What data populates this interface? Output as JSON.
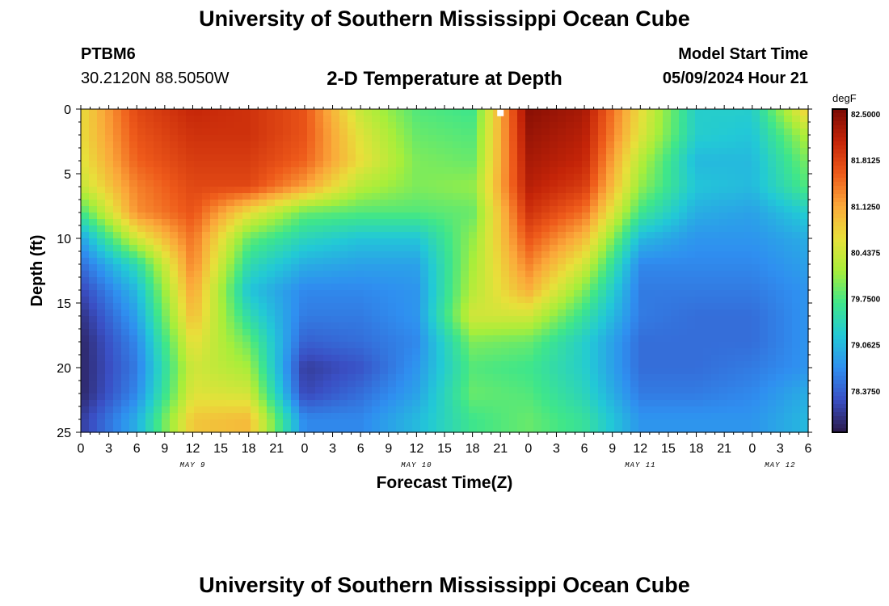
{
  "header": {
    "title": "University of Southern Mississippi Ocean Cube",
    "station": "PTBM6",
    "location": "30.2120N  88.5050W",
    "plot_title": "2-D Temperature at Depth",
    "model_label": "Model Start Time",
    "model_time": "05/09/2024 Hour 21"
  },
  "footer": {
    "title": "University of Southern Mississippi Ocean Cube"
  },
  "chart_data": {
    "type": "heatmap",
    "title": "2-D Temperature at Depth",
    "xlabel": "Forecast Time(Z)",
    "ylabel": "Depth (ft)",
    "ylim": [
      0,
      25
    ],
    "y_inverted": true,
    "y_ticks": [
      "0",
      "5",
      "10",
      "15",
      "20",
      "25"
    ],
    "x_range_hours": [
      0,
      78
    ],
    "x_tick_labels": [
      "0",
      "3",
      "6",
      "9",
      "12",
      "15",
      "18",
      "21",
      "0",
      "3",
      "6",
      "9",
      "12",
      "15",
      "18",
      "21",
      "0",
      "3",
      "6",
      "9",
      "12",
      "15",
      "18",
      "21",
      "0",
      "3",
      "6"
    ],
    "x_tick_hours": [
      0,
      3,
      6,
      9,
      12,
      15,
      18,
      21,
      24,
      27,
      30,
      33,
      36,
      39,
      42,
      45,
      48,
      51,
      54,
      57,
      60,
      63,
      66,
      69,
      72,
      75,
      78
    ],
    "day_labels": [
      {
        "text": "MAY 9",
        "hour": 12
      },
      {
        "text": "MAY 10",
        "hour": 36
      },
      {
        "text": "MAY 11",
        "hour": 60
      },
      {
        "text": "MAY 12",
        "hour": 75
      }
    ],
    "colorbar": {
      "unit": "degF",
      "min": 77.6875,
      "max": 82.5,
      "tick_labels": [
        "82.5000",
        "81.8125",
        "81.1250",
        "80.4375",
        "79.7500",
        "79.0625",
        "78.3750"
      ],
      "tick_values": [
        82.5,
        81.8125,
        81.125,
        80.4375,
        79.75,
        79.0625,
        78.375
      ],
      "colors": [
        "#2b1a4a",
        "#3a4fc4",
        "#2f8ff0",
        "#22c9d6",
        "#3fe68a",
        "#a8ee3a",
        "#e8e03a",
        "#fba83a",
        "#ee5a1a",
        "#c42408",
        "#7a0a04"
      ]
    },
    "marker": {
      "hour": 45,
      "depth": 0.3
    },
    "grid_hours": [
      0,
      6,
      12,
      18,
      24,
      30,
      36,
      42,
      48,
      54,
      60,
      66,
      72,
      78
    ],
    "grid_depths": [
      0,
      2,
      4,
      6,
      8,
      10,
      12,
      14,
      16,
      18,
      20,
      22,
      24
    ],
    "values_degF": [
      [
        80.6,
        81.7,
        82.0,
        81.9,
        81.6,
        80.3,
        79.7,
        79.6,
        82.4,
        82.2,
        80.6,
        79.2,
        79.2,
        80.8
      ],
      [
        80.6,
        81.6,
        81.9,
        81.9,
        81.6,
        80.5,
        79.8,
        79.7,
        82.3,
        82.1,
        80.5,
        79.2,
        79.1,
        80.2
      ],
      [
        80.5,
        81.5,
        81.8,
        81.8,
        81.5,
        80.6,
        79.9,
        79.8,
        82.2,
        82.0,
        80.2,
        79.0,
        79.0,
        79.9
      ],
      [
        80.3,
        81.3,
        81.7,
        81.7,
        81.1,
        80.2,
        79.9,
        80.0,
        82.1,
        81.8,
        80.0,
        79.1,
        79.0,
        79.7
      ],
      [
        79.6,
        81.2,
        81.6,
        80.6,
        79.8,
        79.7,
        79.7,
        79.8,
        81.9,
        81.4,
        79.6,
        78.9,
        78.8,
        79.2
      ],
      [
        78.8,
        80.4,
        81.4,
        79.8,
        79.3,
        79.1,
        79.1,
        80.0,
        81.6,
        80.9,
        79.0,
        78.7,
        78.7,
        78.9
      ],
      [
        78.4,
        79.4,
        81.3,
        79.4,
        78.9,
        78.8,
        78.8,
        80.1,
        81.3,
        80.4,
        78.6,
        78.6,
        78.6,
        78.8
      ],
      [
        78.1,
        79.0,
        81.1,
        79.1,
        78.6,
        78.6,
        78.7,
        80.2,
        81.0,
        79.9,
        78.5,
        78.5,
        78.5,
        78.7
      ],
      [
        77.9,
        78.8,
        80.9,
        79.4,
        78.5,
        78.5,
        78.7,
        80.4,
        80.4,
        79.5,
        78.5,
        78.4,
        78.4,
        78.7
      ],
      [
        77.8,
        78.6,
        80.6,
        79.8,
        78.3,
        78.4,
        78.6,
        79.9,
        79.8,
        79.2,
        78.4,
        78.4,
        78.4,
        78.7
      ],
      [
        77.8,
        78.5,
        80.4,
        80.1,
        78.0,
        78.2,
        78.7,
        79.7,
        79.6,
        79.2,
        78.4,
        78.4,
        78.5,
        78.7
      ],
      [
        77.8,
        78.6,
        80.5,
        80.4,
        78.1,
        78.4,
        78.8,
        79.8,
        79.7,
        79.3,
        78.5,
        78.5,
        78.6,
        78.9
      ],
      [
        78.0,
        78.9,
        80.8,
        80.9,
        78.6,
        78.6,
        79.0,
        79.6,
        79.8,
        79.5,
        78.7,
        78.7,
        78.7,
        79.0
      ]
    ]
  }
}
